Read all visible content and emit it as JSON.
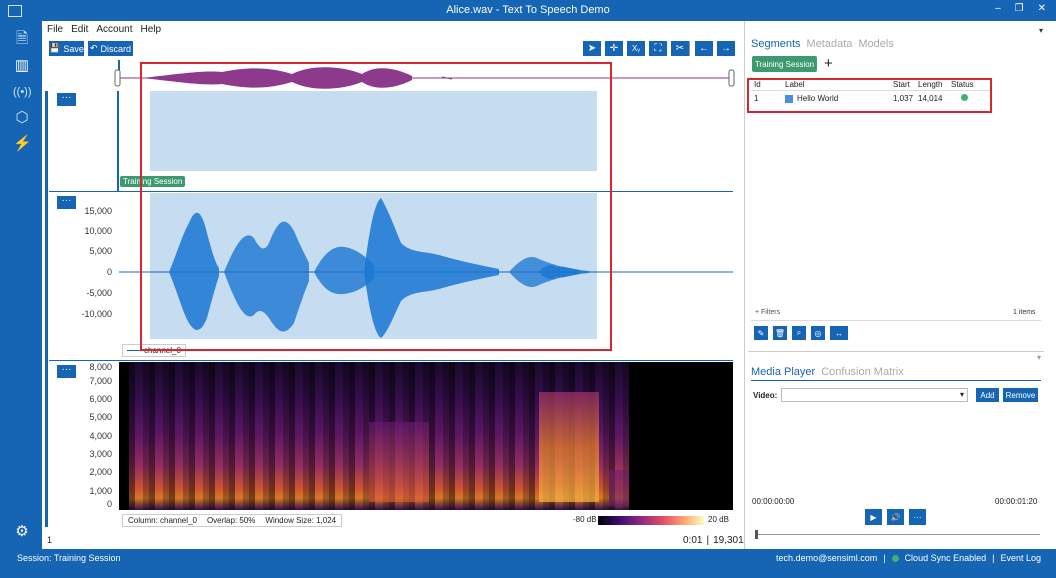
{
  "window": {
    "title": "Alice.wav - Text To Speech Demo",
    "minimize": "–",
    "restore": "❐",
    "close": "✕"
  },
  "menu": [
    "File",
    "Edit",
    "Account",
    "Help"
  ],
  "toolbar": {
    "save": "Save",
    "discard": "Discard",
    "save_icon": "save-icon",
    "discard_icon": "undo-icon"
  },
  "tools": [
    "cursor-icon",
    "move-icon",
    "xy-icon",
    "fit-icon",
    "scissors-icon",
    "arrow-left-icon",
    "arrow-right-icon"
  ],
  "tool_glyphs": [
    "➤",
    "✛",
    "Xᵧ",
    "⛶",
    "✂",
    "←",
    "→"
  ],
  "plot_menu_label": "···",
  "segment_tag": "Training Session",
  "waveform": {
    "y_ticks": [
      "15,000",
      "10,000",
      "5,000",
      "0",
      "-5,000",
      "-10,000"
    ],
    "legend": "channel_0"
  },
  "spectrogram": {
    "y_ticks": [
      "8,000",
      "7,000",
      "6,000",
      "5,000",
      "4,000",
      "3,000",
      "2,000",
      "1,000",
      "0"
    ],
    "column": "Column: channel_0",
    "overlap": "Overlap: 50%",
    "window_size": "Window Size: 1,024",
    "scale_min": "-80 dB",
    "scale_max": "20 dB"
  },
  "footer": {
    "page": "1",
    "time": "0:01",
    "sep": "|",
    "samples": "19,301"
  },
  "segments_panel": {
    "tabs": [
      "Segments",
      "Metadata",
      "Models"
    ],
    "session_button": "Training Session",
    "add": "+",
    "columns": [
      "Id",
      "Label",
      "Start",
      "Length",
      "Status"
    ],
    "rows": [
      {
        "id": "1",
        "label": "Hello World",
        "label_color": "#4a90d9",
        "start": "1,037",
        "length": "14,014",
        "status_color": "#3cb371"
      }
    ],
    "filters": "+ Filters",
    "count": "1 items",
    "actions": [
      "edit-icon",
      "delete-icon",
      "zoom-icon",
      "hide-icon",
      "expand-icon"
    ],
    "action_glyphs": [
      "✎",
      "🗑",
      "⌕",
      "◎",
      "↔"
    ]
  },
  "media_panel": {
    "tabs": [
      "Media Player",
      "Confusion Matrix"
    ],
    "video_label": "Video:",
    "add": "Add",
    "remove": "Remove",
    "time_start": "00:00:00:00",
    "time_end": "00:00:01:20",
    "controls": [
      "play-icon",
      "volume-icon",
      "more-icon"
    ],
    "control_glyphs": [
      "▶",
      "🔊",
      "···"
    ]
  },
  "status": {
    "session": "Session: Training Session",
    "email": "tech.demo@sensiml.com",
    "sep": "|",
    "cloud": "Cloud Sync Enabled",
    "event_log": "Event Log"
  },
  "colors": {
    "accent": "#1565b4",
    "green": "#3d9a70",
    "highlight": "#c5dcf1",
    "red_box": "#d6262e"
  }
}
